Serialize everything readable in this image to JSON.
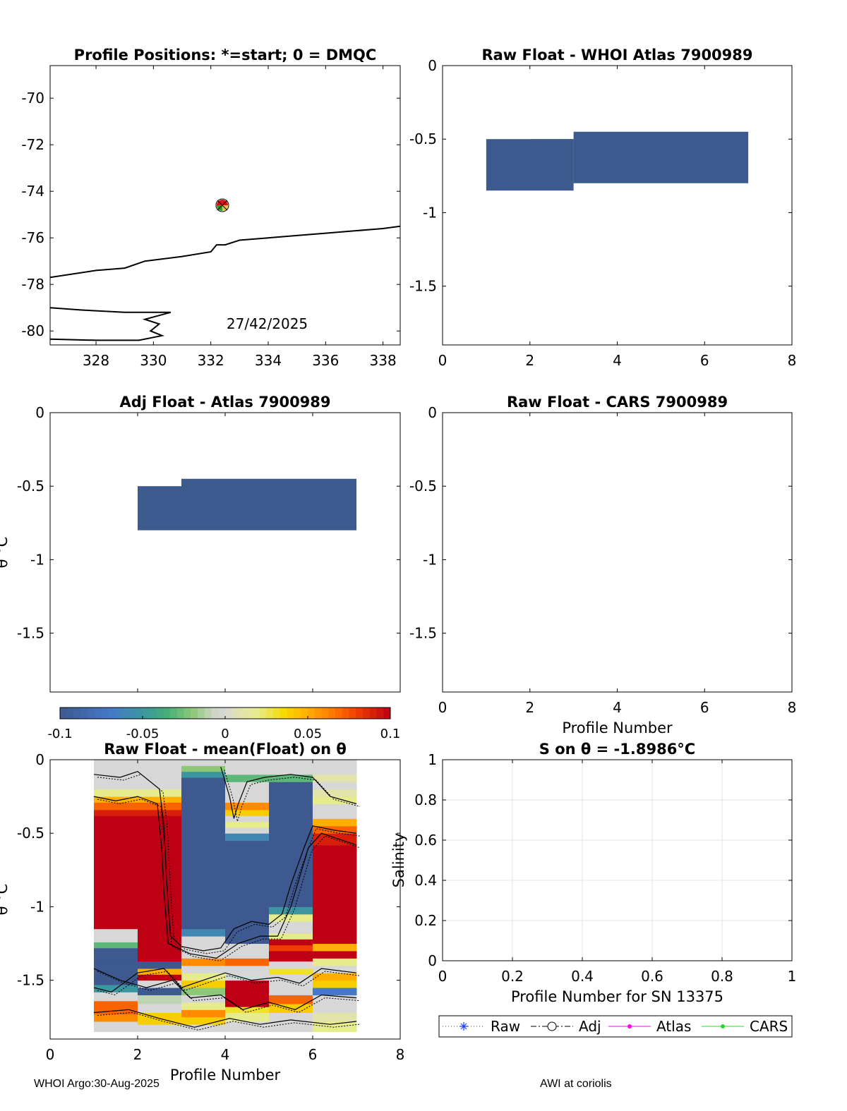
{
  "footer": {
    "left": "WHOI Argo:30-Aug-2025",
    "right": "AWI at coriolis"
  },
  "colorbar": {
    "ticks": [
      "-0.1",
      "-0.05",
      "0",
      "0.05",
      "0.1"
    ],
    "range": [
      -0.1,
      0.1
    ]
  },
  "colors": {
    "fill": "#3d5a8f",
    "raw_line": "#1f3fff",
    "atlas_line": "#ff00ff",
    "cars_line": "#22dd22"
  },
  "chart_data": [
    {
      "id": "positions",
      "type": "scatter",
      "title": "Profile Positions: *=start; 0 = DMQC",
      "xlabel": "",
      "ylabel": "",
      "xlim": [
        326.4,
        338.6
      ],
      "ylim": [
        -80.6,
        -68.6
      ],
      "xticks": [
        "328",
        "330",
        "332",
        "334",
        "336",
        "338"
      ],
      "yticks": [
        "-70",
        "-72",
        "-74",
        "-76",
        "-78",
        "-80"
      ],
      "points": [
        {
          "lon": 332.4,
          "lat": -74.6
        }
      ],
      "coastlines": [
        [
          [
            326.4,
            -77.7
          ],
          [
            328,
            -77.4
          ],
          [
            329,
            -77.3
          ],
          [
            329.7,
            -77.0
          ],
          [
            331,
            -76.8
          ],
          [
            332,
            -76.6
          ],
          [
            332.2,
            -76.3
          ],
          [
            332.5,
            -76.3
          ],
          [
            333,
            -76.1
          ],
          [
            334,
            -76.0
          ],
          [
            335,
            -75.9
          ],
          [
            336,
            -75.8
          ],
          [
            337,
            -75.7
          ],
          [
            338,
            -75.6
          ],
          [
            338.6,
            -75.5
          ]
        ],
        [
          [
            326.4,
            -79.0
          ],
          [
            327.5,
            -79.1
          ],
          [
            329,
            -79.2
          ],
          [
            330.6,
            -79.2
          ],
          [
            329.7,
            -79.5
          ],
          [
            330.2,
            -79.7
          ],
          [
            329.9,
            -80.0
          ],
          [
            330.3,
            -80.2
          ],
          [
            329.5,
            -80.4
          ],
          [
            328,
            -80.4
          ],
          [
            326.4,
            -80.35
          ]
        ]
      ],
      "annotation": "27/42/2025"
    },
    {
      "id": "raw-atlas",
      "type": "heatmap",
      "title": "Raw Float - WHOI Atlas  7900989",
      "xlabel": "",
      "ylabel": "",
      "xlim": [
        0,
        8
      ],
      "ylim": [
        -1.9,
        0
      ],
      "xticks": [
        "0",
        "2",
        "4",
        "6",
        "8"
      ],
      "yticks": [
        "0",
        "-0.5",
        "-1",
        "-1.5"
      ],
      "cells": [
        {
          "x0": 1,
          "x1": 3,
          "y0": -0.85,
          "y1": -0.5
        },
        {
          "x0": 3,
          "x1": 7,
          "y0": -0.8,
          "y1": -0.45
        },
        {
          "x0": 2,
          "x1": 3,
          "y0": -0.8,
          "y1": -0.5
        }
      ]
    },
    {
      "id": "adj-atlas",
      "type": "heatmap",
      "title": "Adj Float - Atlas  7900989",
      "xlabel": "",
      "ylabel": "θ °C",
      "xlim": [
        0,
        8
      ],
      "ylim": [
        -1.9,
        0
      ],
      "xticks": [],
      "yticks": [
        "0",
        "-0.5",
        "-1",
        "-1.5"
      ],
      "cells": [
        {
          "x0": 2,
          "x1": 3,
          "y0": -0.8,
          "y1": -0.5
        },
        {
          "x0": 3,
          "x1": 7,
          "y0": -0.8,
          "y1": -0.45
        }
      ]
    },
    {
      "id": "raw-cars",
      "type": "heatmap",
      "title": "Raw Float - CARS  7900989",
      "xlabel": "Profile Number",
      "ylabel": "",
      "xlim": [
        0,
        8
      ],
      "ylim": [
        -1.9,
        0
      ],
      "xticks": [
        "0",
        "2",
        "4",
        "6",
        "8"
      ],
      "yticks": [
        "0",
        "-0.5",
        "-1",
        "-1.5"
      ],
      "cells": []
    },
    {
      "id": "raw-mean",
      "type": "heatmap",
      "title": "Raw Float - mean(Float) on θ",
      "xlabel": "Profile Number",
      "ylabel": "θ °C",
      "xlim": [
        0,
        8
      ],
      "ylim": [
        -1.9,
        0
      ],
      "xticks": [
        "0",
        "2",
        "4",
        "6",
        "8"
      ],
      "yticks": [
        "0",
        "-0.5",
        "-1",
        "-1.5"
      ],
      "columns": [
        {
          "x0": 1,
          "x1": 2,
          "cells": [
            [
              -1.85,
              -1.78,
              0
            ],
            [
              -1.78,
              -1.73,
              0.06
            ],
            [
              -1.73,
              -1.64,
              0.07
            ],
            [
              -1.64,
              -1.58,
              0
            ],
            [
              -1.58,
              -1.53,
              -0.05
            ],
            [
              -1.53,
              -1.49,
              -0.1
            ],
            [
              -1.49,
              -1.36,
              -0.1
            ],
            [
              -1.36,
              -1.28,
              -0.1
            ],
            [
              -1.28,
              -1.24,
              -0.03
            ],
            [
              -1.24,
              -1.2,
              0
            ],
            [
              -1.2,
              -1.15,
              0
            ],
            [
              -1.15,
              -0.38,
              0.1
            ],
            [
              -0.38,
              -0.34,
              0.09
            ],
            [
              -0.34,
              -0.29,
              0.07
            ],
            [
              -0.29,
              -0.25,
              0.05
            ],
            [
              -0.25,
              -0.2,
              0.02
            ],
            [
              -0.2,
              -0.15,
              0
            ],
            [
              -0.15,
              -0.1,
              0
            ],
            [
              -0.1,
              -0.05,
              0
            ],
            [
              -0.05,
              0,
              0
            ]
          ]
        },
        {
          "x0": 2,
          "x1": 3,
          "cells": [
            [
              -1.85,
              -1.8,
              0
            ],
            [
              -1.8,
              -1.72,
              0.04
            ],
            [
              -1.72,
              -1.66,
              0
            ],
            [
              -1.66,
              -1.6,
              -0.01
            ],
            [
              -1.6,
              -1.55,
              -0.1
            ],
            [
              -1.55,
              -1.5,
              0
            ],
            [
              -1.5,
              -1.46,
              0.1
            ],
            [
              -1.46,
              -1.42,
              0.05
            ],
            [
              -1.42,
              -1.37,
              -0.1
            ],
            [
              -1.37,
              -0.38,
              0.1
            ],
            [
              -0.38,
              -0.34,
              0.09
            ],
            [
              -0.34,
              -0.29,
              0.07
            ],
            [
              -0.29,
              -0.25,
              0.05
            ],
            [
              -0.25,
              -0.2,
              0.02
            ],
            [
              -0.2,
              -0.15,
              0
            ],
            [
              -0.15,
              -0.1,
              0
            ],
            [
              -0.1,
              -0.05,
              0
            ],
            [
              -0.05,
              0,
              0
            ]
          ]
        },
        {
          "x0": 3,
          "x1": 4,
          "cells": [
            [
              -1.85,
              -1.8,
              0
            ],
            [
              -1.8,
              -1.75,
              0.04
            ],
            [
              -1.75,
              -1.7,
              0.06
            ],
            [
              -1.7,
              -1.65,
              0.02
            ],
            [
              -1.65,
              -1.6,
              0
            ],
            [
              -1.6,
              -1.55,
              -0.02
            ],
            [
              -1.55,
              -1.5,
              0.04
            ],
            [
              -1.5,
              -1.45,
              0.02
            ],
            [
              -1.45,
              -1.4,
              0
            ],
            [
              -1.4,
              -1.35,
              0.06
            ],
            [
              -1.35,
              -1.3,
              0
            ],
            [
              -1.3,
              -1.25,
              0
            ],
            [
              -1.25,
              -1.2,
              0
            ],
            [
              -1.2,
              -1.15,
              -0.06
            ],
            [
              -1.15,
              -0.12,
              -0.1
            ],
            [
              -0.12,
              -0.08,
              -0.05
            ],
            [
              -0.08,
              -0.04,
              -0.02
            ],
            [
              -0.04,
              0,
              0
            ]
          ]
        },
        {
          "x0": 4,
          "x1": 5,
          "cells": [
            [
              -1.85,
              -1.78,
              0
            ],
            [
              -1.78,
              -1.72,
              0.02
            ],
            [
              -1.72,
              -1.68,
              0.03
            ],
            [
              -1.68,
              -1.5,
              0.1
            ],
            [
              -1.5,
              -1.4,
              0
            ],
            [
              -1.4,
              -1.35,
              0.07
            ],
            [
              -1.35,
              -1.3,
              0
            ],
            [
              -1.3,
              -1.25,
              0
            ],
            [
              -1.25,
              -0.55,
              -0.1
            ],
            [
              -0.55,
              -0.5,
              -0.06
            ],
            [
              -0.5,
              -0.46,
              0
            ],
            [
              -0.46,
              -0.42,
              0.02
            ],
            [
              -0.42,
              -0.38,
              0
            ],
            [
              -0.38,
              -0.34,
              0.04
            ],
            [
              -0.34,
              -0.29,
              0.06
            ],
            [
              -0.29,
              -0.25,
              0
            ],
            [
              -0.25,
              -0.2,
              0
            ],
            [
              -0.2,
              -0.15,
              0
            ],
            [
              -0.15,
              -0.1,
              -0.03
            ],
            [
              -0.1,
              -0.05,
              0
            ],
            [
              -0.05,
              0,
              0
            ]
          ]
        },
        {
          "x0": 5,
          "x1": 6,
          "cells": [
            [
              -1.85,
              -1.8,
              0
            ],
            [
              -1.8,
              -1.72,
              0
            ],
            [
              -1.72,
              -1.66,
              0.04
            ],
            [
              -1.66,
              -1.6,
              0.07
            ],
            [
              -1.6,
              -1.56,
              0
            ],
            [
              -1.56,
              -1.5,
              0
            ],
            [
              -1.5,
              -1.46,
              0
            ],
            [
              -1.46,
              -1.42,
              0.03
            ],
            [
              -1.42,
              -1.37,
              0
            ],
            [
              -1.37,
              -1.3,
              0.1
            ],
            [
              -1.3,
              -1.26,
              0.08
            ],
            [
              -1.26,
              -1.22,
              0.1
            ],
            [
              -1.22,
              -1.18,
              0.02
            ],
            [
              -1.18,
              -1.1,
              0
            ],
            [
              -1.1,
              -1.05,
              0.02
            ],
            [
              -1.05,
              -1.0,
              -0.05
            ],
            [
              -1.0,
              -0.15,
              -0.1
            ],
            [
              -0.15,
              -0.1,
              -0.03
            ],
            [
              -0.1,
              -0.05,
              0
            ],
            [
              -0.05,
              0,
              0
            ]
          ]
        },
        {
          "x0": 6,
          "x1": 7,
          "cells": [
            [
              -1.85,
              -1.78,
              0.02
            ],
            [
              -1.78,
              -1.72,
              0.01
            ],
            [
              -1.72,
              -1.65,
              0
            ],
            [
              -1.65,
              -1.6,
              0
            ],
            [
              -1.6,
              -1.55,
              -0.07
            ],
            [
              -1.55,
              -1.5,
              0.04
            ],
            [
              -1.5,
              -1.45,
              0.05
            ],
            [
              -1.45,
              -1.4,
              0
            ],
            [
              -1.4,
              -1.35,
              0.02
            ],
            [
              -1.35,
              -1.3,
              0.1
            ],
            [
              -1.3,
              -1.25,
              0.05
            ],
            [
              -1.25,
              -0.58,
              0.1
            ],
            [
              -0.58,
              -0.5,
              0.09
            ],
            [
              -0.5,
              -0.45,
              0.07
            ],
            [
              -0.45,
              -0.4,
              0.05
            ],
            [
              -0.4,
              -0.35,
              0
            ],
            [
              -0.35,
              -0.3,
              0
            ],
            [
              -0.3,
              -0.25,
              0.02
            ],
            [
              -0.25,
              -0.2,
              0.01
            ],
            [
              -0.2,
              -0.15,
              0
            ],
            [
              -0.15,
              -0.1,
              0.01
            ],
            [
              -0.1,
              0,
              0
            ]
          ]
        }
      ]
    },
    {
      "id": "salinity",
      "type": "line",
      "title": "S on θ = -1.8986°C",
      "xlabel": "Profile Number for SN 13375",
      "ylabel": "Salinity",
      "xlim": [
        0,
        1
      ],
      "ylim": [
        0,
        1
      ],
      "xticks": [
        "0",
        "0.2",
        "0.4",
        "0.6",
        "0.8",
        "1"
      ],
      "yticks": [
        "0",
        "0.2",
        "0.4",
        "0.6",
        "0.8",
        "1"
      ],
      "grid": true,
      "series": [],
      "legend": [
        "Raw",
        "Adj",
        "Atlas",
        "CARS"
      ],
      "legend_position": "below"
    }
  ]
}
